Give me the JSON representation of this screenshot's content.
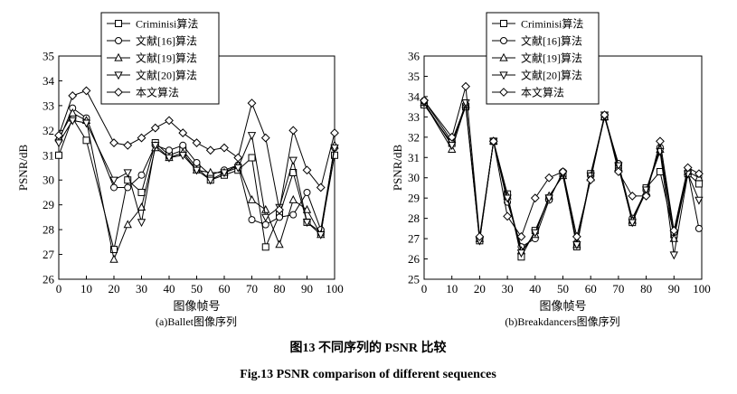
{
  "figure": {
    "caption_cn": "图13   不同序列的 PSNR 比较",
    "caption_en": "Fig.13    PSNR comparison of different sequences"
  },
  "chart_data": [
    {
      "type": "line",
      "subtitle": "(a)Ballet图像序列",
      "xlabel": "图像帧号",
      "ylabel": "PSNR/dB",
      "xlim": [
        0,
        100
      ],
      "ylim": [
        26,
        35
      ],
      "xticks": [
        "0",
        "10",
        "20",
        "30",
        "40",
        "50",
        "60",
        "70",
        "80",
        "90",
        "100"
      ],
      "yticks": [
        "26",
        "27",
        "28",
        "29",
        "30",
        "31",
        "32",
        "33",
        "34",
        "35"
      ],
      "legend_position": "top-left",
      "x": [
        0,
        5,
        10,
        20,
        25,
        30,
        35,
        40,
        45,
        50,
        55,
        60,
        65,
        70,
        75,
        80,
        85,
        90,
        95,
        100
      ],
      "series": [
        {
          "name": "Criminisi算法",
          "marker": "square",
          "values": [
            31.0,
            32.5,
            31.6,
            27.2,
            30.0,
            29.5,
            31.5,
            31.0,
            31.2,
            30.5,
            30.0,
            30.2,
            30.4,
            30.9,
            27.3,
            28.6,
            30.3,
            28.3,
            27.9,
            31.0
          ]
        },
        {
          "name": "文献[16]算法",
          "marker": "circle",
          "values": [
            31.6,
            32.9,
            32.5,
            29.7,
            29.7,
            30.2,
            31.4,
            31.2,
            31.4,
            30.7,
            30.2,
            30.4,
            30.6,
            28.4,
            28.2,
            28.5,
            28.6,
            29.5,
            28.0,
            31.3
          ]
        },
        {
          "name": "文献[19]算法",
          "marker": "triangle-up",
          "values": [
            31.7,
            32.7,
            32.4,
            26.8,
            28.2,
            28.9,
            31.3,
            30.9,
            31.1,
            30.4,
            30.3,
            30.3,
            30.6,
            29.2,
            28.8,
            27.4,
            29.2,
            28.8,
            27.8,
            31.4
          ]
        },
        {
          "name": "文献[20]算法",
          "marker": "triangle-down",
          "values": [
            31.5,
            32.4,
            32.3,
            30.0,
            30.3,
            28.3,
            31.4,
            30.9,
            31.0,
            30.4,
            30.0,
            30.3,
            30.5,
            31.8,
            28.5,
            28.9,
            30.8,
            28.3,
            27.8,
            31.3
          ]
        },
        {
          "name": "本文算法",
          "marker": "diamond",
          "values": [
            31.8,
            33.4,
            33.6,
            31.5,
            31.4,
            31.7,
            32.1,
            32.4,
            31.9,
            31.5,
            31.2,
            31.3,
            30.9,
            33.1,
            31.7,
            28.8,
            32.0,
            30.4,
            29.7,
            31.9
          ]
        }
      ]
    },
    {
      "type": "line",
      "subtitle": "(b)Breakdancers图像序列",
      "xlabel": "图像帧号",
      "ylabel": "PSNR/dB",
      "xlim": [
        0,
        100
      ],
      "ylim": [
        25,
        36
      ],
      "xticks": [
        "0",
        "10",
        "20",
        "30",
        "40",
        "50",
        "60",
        "70",
        "80",
        "90",
        "100"
      ],
      "yticks": [
        "25",
        "26",
        "27",
        "28",
        "29",
        "30",
        "31",
        "32",
        "33",
        "34",
        "35",
        "36"
      ],
      "legend_position": "top-left",
      "x": [
        0,
        10,
        15,
        20,
        25,
        30,
        35,
        40,
        45,
        50,
        55,
        60,
        65,
        70,
        75,
        80,
        85,
        90,
        95,
        99
      ],
      "series": [
        {
          "name": "Criminisi算法",
          "marker": "square",
          "values": [
            33.6,
            31.7,
            33.5,
            26.9,
            31.8,
            29.2,
            26.1,
            27.4,
            29.0,
            30.2,
            26.6,
            30.2,
            33.0,
            30.6,
            27.8,
            29.5,
            30.3,
            27.2,
            30.2,
            29.7
          ]
        },
        {
          "name": "文献[16]算法",
          "marker": "circle",
          "values": [
            33.8,
            31.8,
            33.6,
            27.0,
            31.8,
            28.8,
            26.6,
            27.0,
            28.9,
            30.3,
            26.8,
            30.1,
            33.0,
            30.7,
            28.0,
            29.4,
            31.5,
            27.3,
            30.3,
            27.5
          ]
        },
        {
          "name": "文献[19]算法",
          "marker": "triangle-up",
          "values": [
            33.7,
            31.4,
            33.6,
            27.0,
            31.8,
            29.1,
            26.4,
            27.2,
            29.1,
            30.1,
            26.7,
            30.0,
            33.0,
            30.5,
            27.9,
            29.3,
            31.4,
            27.0,
            30.3,
            30.0
          ]
        },
        {
          "name": "文献[20]算法",
          "marker": "triangle-down",
          "values": [
            33.7,
            31.6,
            33.7,
            26.9,
            31.8,
            29.0,
            26.3,
            27.3,
            29.0,
            30.2,
            26.7,
            30.1,
            33.1,
            30.6,
            27.8,
            29.4,
            31.3,
            26.2,
            30.2,
            28.9
          ]
        },
        {
          "name": "本文算法",
          "marker": "diamond",
          "values": [
            33.8,
            32.0,
            34.5,
            27.1,
            31.8,
            28.1,
            27.1,
            29.0,
            30.0,
            30.3,
            27.1,
            29.9,
            33.1,
            30.3,
            29.1,
            29.1,
            31.8,
            27.4,
            30.5,
            30.2
          ]
        }
      ]
    }
  ]
}
